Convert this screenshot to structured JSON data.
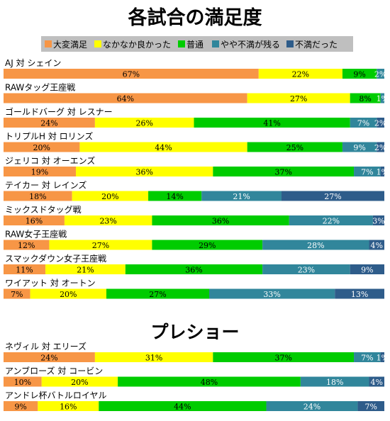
{
  "chart_data": {
    "type": "bar",
    "orientation": "horizontal",
    "stacked": true,
    "percent": true,
    "title": "各試合の満足度",
    "section_title": "プレショー",
    "legend_position": "top",
    "xlim": [
      0,
      100
    ],
    "series": [
      {
        "name": "大変満足",
        "color": "#F79646"
      },
      {
        "name": "なかなか良かった",
        "color": "#FFFF00"
      },
      {
        "name": "普通",
        "color": "#00CC00"
      },
      {
        "name": "やや不満が残る",
        "color": "#31869B"
      },
      {
        "name": "不満だった",
        "color": "#2E5C8A"
      }
    ],
    "groups": [
      {
        "rows": [
          {
            "label": "AJ 対 シェイン",
            "values": [
              67,
              22,
              9,
              2,
              0
            ],
            "texts": [
              "67%",
              "22%",
              "9%",
              "2%",
              ""
            ]
          },
          {
            "label": "RAWタッグ王座戦",
            "values": [
              64,
              27,
              8,
              1,
              0
            ],
            "texts": [
              "64%",
              "27%",
              "8%",
              "1%",
              ""
            ]
          },
          {
            "label": "ゴールドバーグ 対 レスナー",
            "values": [
              24,
              26,
              41,
              7,
              2
            ],
            "texts": [
              "24%",
              "26%",
              "41%",
              "7%",
              "2%"
            ]
          },
          {
            "label": "トリプルH 対 ロリンズ",
            "values": [
              20,
              44,
              25,
              9,
              2
            ],
            "texts": [
              "20%",
              "44%",
              "25%",
              "9%",
              "2%"
            ]
          },
          {
            "label": "ジェリコ 対 オーエンズ",
            "values": [
              19,
              36,
              37,
              7,
              1
            ],
            "texts": [
              "19%",
              "36%",
              "37%",
              "7%",
              "1%"
            ]
          },
          {
            "label": "テイカー 対 レインズ",
            "values": [
              18,
              20,
              14,
              21,
              27
            ],
            "texts": [
              "18%",
              "20%",
              "14%",
              "21%",
              "27%"
            ]
          },
          {
            "label": "ミックスドタッグ戦",
            "values": [
              16,
              23,
              36,
              22,
              3
            ],
            "texts": [
              "16%",
              "23%",
              "36%",
              "22%",
              "3%"
            ]
          },
          {
            "label": "RAW女子王座戦",
            "values": [
              12,
              27,
              29,
              28,
              4
            ],
            "texts": [
              "12%",
              "27%",
              "29%",
              "28%",
              "4%"
            ]
          },
          {
            "label": "スマックダウン女子王座戦",
            "values": [
              11,
              21,
              36,
              23,
              9
            ],
            "texts": [
              "11%",
              "21%",
              "36%",
              "23%",
              "9%"
            ]
          },
          {
            "label": "ワイアット 対 オートン",
            "values": [
              7,
              20,
              27,
              33,
              13
            ],
            "texts": [
              "7%",
              "20%",
              "27%",
              "33%",
              "13%"
            ]
          }
        ]
      },
      {
        "rows": [
          {
            "label": "ネヴィル 対 エリーズ",
            "values": [
              24,
              31,
              37,
              7,
              1
            ],
            "texts": [
              "24%",
              "31%",
              "37%",
              "7%",
              "1%"
            ]
          },
          {
            "label": "アンブローズ 対 コービン",
            "values": [
              10,
              20,
              48,
              18,
              4
            ],
            "texts": [
              "10%",
              "20%",
              "48%",
              "18%",
              "4%"
            ]
          },
          {
            "label": "アンドレ杯バトルロイヤル",
            "values": [
              9,
              16,
              44,
              24,
              7
            ],
            "texts": [
              "9%",
              "16%",
              "44%",
              "24%",
              "7%"
            ]
          }
        ]
      }
    ]
  }
}
